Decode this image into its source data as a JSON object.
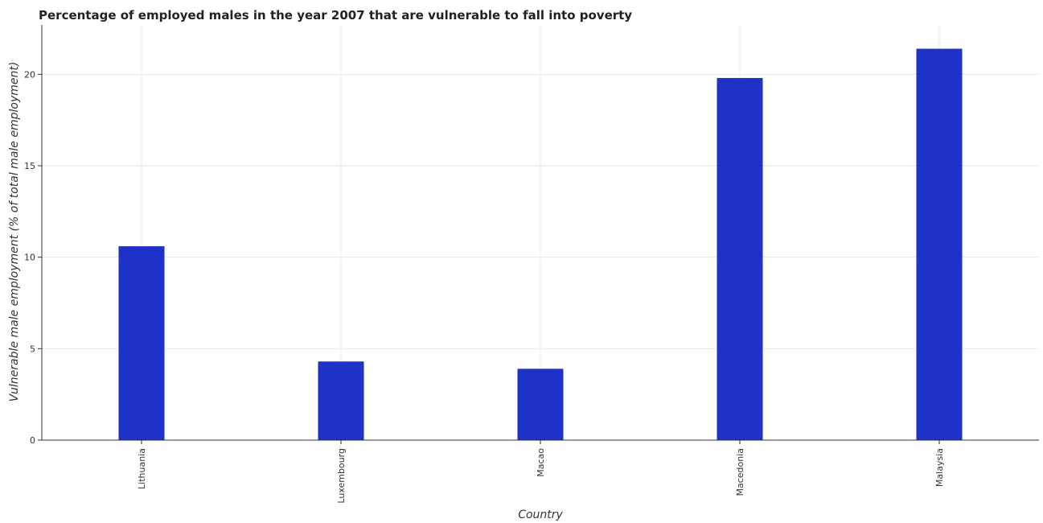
{
  "chart_data": {
    "type": "bar",
    "title": "Percentage of employed males in the year 2007 that are vulnerable to fall into poverty",
    "xlabel": "Country",
    "ylabel": "Vulnerable male employment (% of total male employment)",
    "categories": [
      "Lithuania",
      "Luxembourg",
      "Macao",
      "Macedonia",
      "Malaysia"
    ],
    "values": [
      10.6,
      4.3,
      3.9,
      19.8,
      21.4
    ],
    "ylim": [
      0,
      22.7
    ],
    "yticks": [
      0,
      5,
      10,
      15,
      20
    ],
    "grid": true,
    "bar_color": "#1f32c8",
    "legend": "none"
  }
}
